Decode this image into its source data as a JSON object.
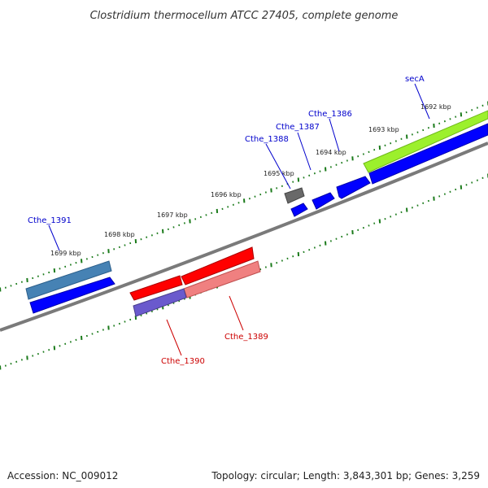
{
  "title": "Clostridium thermocellum ATCC 27405, complete genome",
  "accession": "Accession: NC_009012",
  "topology": "Topology: circular; Length: 3,843,301 bp; Genes: 3,259",
  "colors": {
    "backbone": "#808080",
    "ticks": "#1a7a1a",
    "forward_cds": "#0000ff",
    "forward_label": "#0000cc",
    "reverse_cds": "#ff0000",
    "reverse_label": "#cc0000",
    "secA_feature": "#9cf02c",
    "cthe1391_feature": "#4682b4",
    "cthe1389_feature": "#f08080",
    "cthe1390_feature": "#6a5acd",
    "small_feature": "#696969"
  },
  "scale_labels": [
    {
      "kbp": 1692,
      "text": "1692 kbp"
    },
    {
      "kbp": 1693,
      "text": "1693 kbp"
    },
    {
      "kbp": 1694,
      "text": "1694 kbp"
    },
    {
      "kbp": 1695,
      "text": "1695 kbp"
    },
    {
      "kbp": 1696,
      "text": "1696 kbp"
    },
    {
      "kbp": 1697,
      "text": "1697 kbp"
    },
    {
      "kbp": 1698,
      "text": "1698 kbp"
    },
    {
      "kbp": 1699,
      "text": "1699 kbp"
    }
  ],
  "genes": [
    {
      "name": "secA",
      "strand": "forward"
    },
    {
      "name": "Cthe_1386",
      "strand": "forward"
    },
    {
      "name": "Cthe_1387",
      "strand": "forward"
    },
    {
      "name": "Cthe_1388",
      "strand": "forward"
    },
    {
      "name": "Cthe_1389",
      "strand": "reverse"
    },
    {
      "name": "Cthe_1390",
      "strand": "reverse"
    },
    {
      "name": "Cthe_1391",
      "strand": "forward"
    }
  ]
}
